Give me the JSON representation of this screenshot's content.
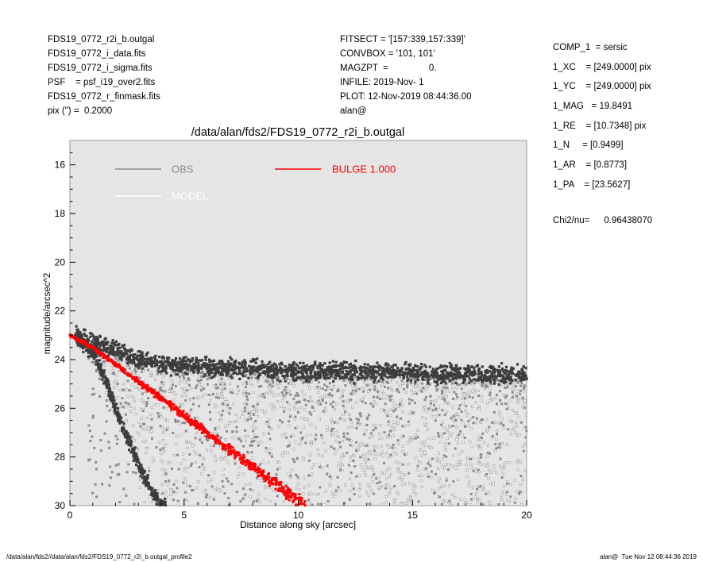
{
  "header_left": [
    "FDS19_0772_r2i_b.outgal",
    "FDS19_0772_i_data.fits",
    "FDS19_0772_i_sigma.fits",
    "PSF    = psf_i19_over2.fits",
    "FDS19_0772_r_finmask.fits",
    "pix (\") =  0.2000"
  ],
  "header_middle": [
    "FITSECT = '[157:339,157:339]'",
    "CONVBOX = '101, 101'",
    "MAGZPT  =                0.",
    "INFILE: 2019-Nov- 1",
    "PLOT: 12-Nov-2019 08:44:36.00",
    "alan@"
  ],
  "header_right": [
    "COMP_1  = sersic",
    "1_XC    = [249.0000] pix",
    "1_YC    = [249.0000] pix",
    "1_MAG   = 19.8491",
    "1_RE    = [10.7348] pix",
    "1_N     = [0.9499]",
    "1_AR    = [0.8773]",
    "1_PA    = [23.5627]"
  ],
  "chi2": {
    "label": "Chi2/nu=",
    "value": "0.96438070"
  },
  "footer_left": "/data/alan/fds2//data/alan/fds2/FDS19_0772_r2i_b.outgal_profile2",
  "footer_right": "alan@  Tue Nov 12 08:44:36 2019",
  "colors": {
    "panel_bg": "#e5e5e5",
    "obs": "#8c8c8c",
    "obs_dark": "#3c3c3c",
    "model": "#ffffff",
    "bulge": "#ff0000"
  },
  "chart_data": {
    "type": "scatter",
    "title": "/data/alan/fds2/FDS19_0772_r2i_b.outgal",
    "xlabel": "Distance along sky [arcsec]",
    "ylabel": "magnitude/arcsec^2",
    "xlim": [
      0,
      20
    ],
    "ylim": [
      30,
      15
    ],
    "y_inverted": true,
    "xticks": [
      0,
      5,
      10,
      15,
      20
    ],
    "yticks": [
      16,
      18,
      20,
      22,
      24,
      26,
      28,
      30
    ],
    "legend": [
      {
        "label": "OBS",
        "color": "#8c8c8c"
      },
      {
        "label": "MODEL",
        "color": "#ffffff"
      },
      {
        "label": "BULGE  1.000",
        "color": "#ff0000"
      }
    ],
    "series": [
      {
        "name": "OBS",
        "kind": "sky-plateau",
        "x": [
          0.2,
          1,
          2,
          3,
          4,
          6,
          8,
          10,
          12,
          14,
          16,
          18,
          20
        ],
        "y": [
          23.0,
          23.3,
          23.6,
          24.0,
          24.2,
          24.3,
          24.4,
          24.5,
          24.5,
          24.5,
          24.6,
          24.6,
          24.7
        ]
      },
      {
        "name": "OBS",
        "kind": "steep-arm",
        "x": [
          0.3,
          1,
          1.5,
          2,
          2.5,
          3,
          3.5,
          4
        ],
        "y": [
          23.1,
          23.7,
          24.7,
          26.0,
          27.2,
          28.3,
          29.3,
          30.0
        ]
      },
      {
        "name": "BULGE  1.000",
        "x": [
          0,
          1,
          2,
          3,
          4,
          5,
          6,
          7,
          8,
          9,
          10,
          10.3
        ],
        "y": [
          23.0,
          23.5,
          24.2,
          24.9,
          25.6,
          26.3,
          27.0,
          27.7,
          28.4,
          29.1,
          29.8,
          30.0
        ]
      }
    ]
  }
}
